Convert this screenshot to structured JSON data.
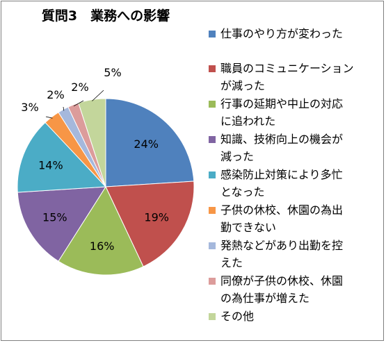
{
  "chart_data": {
    "type": "pie",
    "title": "質問3　業務への影響",
    "legend_position": "right",
    "categories": [
      "仕事のやり方が変わった",
      "職員のコミュニケーションが減った",
      "行事の延期や中止の対応に追われた",
      "知識、技術向上の機会が減った",
      "感染防止対策により多忙となった",
      "子供の休校、休園の為出勤できない",
      "発熱などがあり出勤を控えた",
      "同僚が子供の休校、休園の為仕事が増えた",
      "その他"
    ],
    "legend_lines": [
      [
        "仕事のやり方が変わった"
      ],
      [
        "職員のコミュニケーション",
        "が減った"
      ],
      [
        "行事の延期や中止の対応",
        "に追われた"
      ],
      [
        "知識、技術向上の機会が",
        "減った"
      ],
      [
        "感染防止対策により多忙",
        "となった"
      ],
      [
        "子供の休校、休園の為出",
        "勤できない"
      ],
      [
        "発熱などがあり出勤を控",
        "えた"
      ],
      [
        "同僚が子供の休校、休園",
        "の為仕事が増えた"
      ],
      [
        "その他"
      ]
    ],
    "values": [
      24,
      19,
      16,
      15,
      14,
      3,
      2,
      2,
      5
    ],
    "labels": [
      "24%",
      "19%",
      "16%",
      "15%",
      "14%",
      "3%",
      "2%",
      "2%",
      "5%"
    ],
    "colors": [
      "#4f81bd",
      "#c0504d",
      "#9bbb59",
      "#8064a2",
      "#4bacc6",
      "#f79646",
      "#a5b8dc",
      "#dc9c9b",
      "#c3d69b"
    ]
  }
}
